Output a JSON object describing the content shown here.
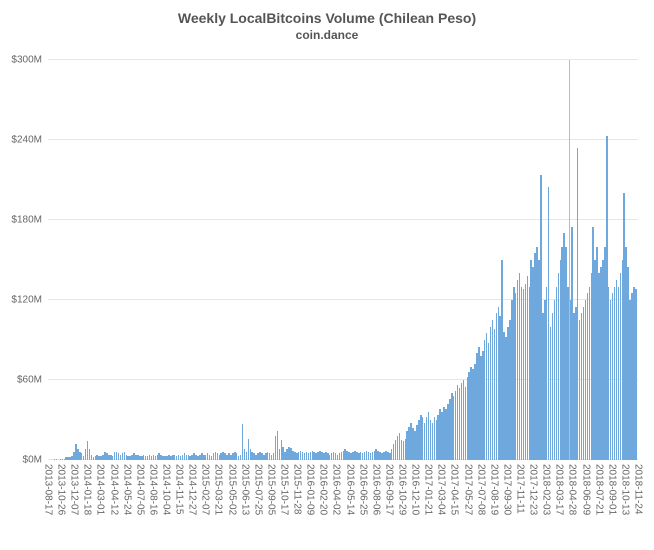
{
  "chart": {
    "type": "bar",
    "title": "Weekly LocalBitcoins Volume (Chilean Peso)",
    "subtitle": "coin.dance",
    "title_fontsize": 14,
    "subtitle_fontsize": 12,
    "title_color": "#555555",
    "background_color": "#ffffff",
    "grid_color": "#e6e6e6",
    "bar_color": "#6fa8dc",
    "axis_label_color": "#666666",
    "axis_label_fontsize": 10,
    "ylim": [
      0,
      300
    ],
    "ytick_step": 60,
    "y_prefix": "$",
    "y_suffix": "M",
    "y_ticks": [
      0,
      60,
      120,
      180,
      240,
      300
    ],
    "vertical_marker_index": 268,
    "values": [
      0,
      0,
      0,
      1,
      1,
      0,
      1,
      1,
      1,
      2,
      2,
      2,
      3,
      6,
      12,
      8,
      6,
      5,
      3,
      8,
      14,
      8,
      4,
      2,
      3,
      4,
      3,
      3,
      4,
      6,
      5,
      4,
      4,
      3,
      6,
      6,
      5,
      4,
      5,
      6,
      4,
      3,
      3,
      4,
      5,
      4,
      4,
      3,
      3,
      4,
      3,
      3,
      4,
      3,
      4,
      3,
      4,
      5,
      4,
      3,
      3,
      3,
      4,
      3,
      4,
      4,
      3,
      4,
      3,
      4,
      5,
      4,
      4,
      3,
      4,
      5,
      4,
      3,
      4,
      5,
      4,
      4,
      5,
      4,
      3,
      5,
      6,
      5,
      4,
      5,
      6,
      5,
      4,
      5,
      4,
      5,
      6,
      5,
      3,
      4,
      27,
      8,
      6,
      16,
      8,
      6,
      5,
      4,
      5,
      6,
      5,
      4,
      5,
      6,
      5,
      4,
      5,
      18,
      22,
      8,
      15,
      10,
      6,
      8,
      10,
      9,
      7,
      6,
      5,
      6,
      7,
      6,
      5,
      6,
      5,
      6,
      7,
      6,
      5,
      6,
      7,
      6,
      5,
      6,
      5,
      4,
      5,
      6,
      5,
      4,
      5,
      6,
      7,
      8,
      7,
      6,
      5,
      6,
      7,
      6,
      5,
      6,
      5,
      6,
      7,
      6,
      5,
      6,
      7,
      8,
      7,
      6,
      5,
      6,
      7,
      6,
      5,
      8,
      12,
      15,
      18,
      20,
      15,
      14,
      16,
      22,
      25,
      28,
      24,
      22,
      26,
      30,
      34,
      32,
      28,
      32,
      36,
      30,
      28,
      32,
      30,
      34,
      38,
      36,
      40,
      38,
      42,
      46,
      50,
      48,
      52,
      56,
      54,
      58,
      60,
      55,
      62,
      66,
      70,
      68,
      72,
      80,
      85,
      78,
      82,
      90,
      95,
      88,
      100,
      105,
      98,
      110,
      115,
      108,
      150,
      96,
      92,
      100,
      105,
      120,
      130,
      125,
      135,
      140,
      130,
      128,
      132,
      138,
      130,
      150,
      145,
      155,
      160,
      150,
      214,
      110,
      120,
      130,
      205,
      100,
      110,
      120,
      130,
      140,
      150,
      160,
      170,
      160,
      130,
      120,
      175,
      110,
      115,
      234,
      105,
      110,
      115,
      120,
      125,
      130,
      140,
      175,
      150,
      160,
      140,
      145,
      150,
      160,
      243,
      130,
      120,
      125,
      130,
      135,
      130,
      140,
      150,
      200,
      160,
      145,
      120,
      125,
      130,
      128
    ],
    "x_labels_shown": [
      "2013-08-17",
      "2013-10-26",
      "2013-12-07",
      "2014-01-18",
      "2014-03-01",
      "2014-04-12",
      "2014-05-24",
      "2014-07-05",
      "2014-08-16",
      "2014-10-04",
      "2014-11-15",
      "2014-12-27",
      "2015-02-07",
      "2015-03-21",
      "2015-05-02",
      "2015-06-13",
      "2015-07-25",
      "2015-09-05",
      "2015-10-17",
      "2015-11-28",
      "2016-01-09",
      "2016-02-20",
      "2016-04-02",
      "2016-05-14",
      "2016-06-25",
      "2016-08-06",
      "2016-09-17",
      "2016-10-29",
      "2016-12-10",
      "2017-01-21",
      "2017-03-04",
      "2017-04-15",
      "2017-05-27",
      "2017-07-08",
      "2017-08-19",
      "2017-09-30",
      "2017-11-11",
      "2017-12-23",
      "2018-02-03",
      "2018-03-17",
      "2018-04-28",
      "2018-06-09",
      "2018-07-21",
      "2018-09-01",
      "2018-10-13",
      "2018-11-24"
    ]
  }
}
